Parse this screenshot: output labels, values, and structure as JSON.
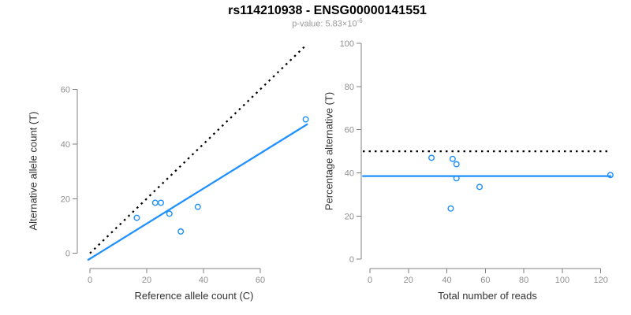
{
  "header": {
    "title": "rs114210938 - ENSG00000141551",
    "subtitle_prefix": "p-value: 5.83×10",
    "subtitle_exponent": "-6"
  },
  "colors": {
    "accent_blue": "#1E90FF",
    "dotted_line": "#000000",
    "axis_line": "#808080",
    "tick_label": "#8f8f8f",
    "axis_label": "#333333",
    "subtitle_gray": "#999999"
  },
  "chart_data": [
    {
      "type": "scatter",
      "panel": "left",
      "xlabel": "Reference allele count (C)",
      "ylabel": "Alternative allele count (T)",
      "xticks": [
        0,
        20,
        40,
        60
      ],
      "yticks": [
        0,
        20,
        40,
        60
      ],
      "xlim": [
        -4.5,
        78
      ],
      "ylim": [
        -5.5,
        76.5
      ],
      "grid": false,
      "point_color": "#1E90FF",
      "points": [
        [
          16.5,
          13
        ],
        [
          23,
          18.5
        ],
        [
          25,
          18.5
        ],
        [
          28,
          14.5
        ],
        [
          38,
          17
        ],
        [
          32,
          8
        ],
        [
          76,
          49
        ]
      ],
      "lines": [
        {
          "name": "identity-line",
          "style": "dotted",
          "color": "#000000",
          "from": [
            0,
            0
          ],
          "to": [
            76.2,
            76.2
          ]
        },
        {
          "name": "regression-line",
          "style": "solid",
          "color": "#1E90FF",
          "from": [
            -0.8,
            -2.5
          ],
          "to": [
            76.7,
            47.3
          ]
        }
      ]
    },
    {
      "type": "scatter",
      "panel": "right",
      "xlabel": "Total number of reads",
      "ylabel": "Percentage alternative (T)",
      "xticks": [
        0,
        20,
        40,
        60,
        80,
        100,
        120
      ],
      "yticks": [
        0,
        20,
        40,
        60,
        80,
        100
      ],
      "xlim": [
        -4.5,
        126
      ],
      "ylim": [
        -4.5,
        104.5
      ],
      "grid": false,
      "point_color": "#1E90FF",
      "points": [
        [
          32,
          47
        ],
        [
          43,
          46.5
        ],
        [
          45,
          44
        ],
        [
          45,
          37.5
        ],
        [
          57,
          33.5
        ],
        [
          42,
          23.5
        ],
        [
          125,
          39
        ]
      ],
      "lines": [
        {
          "name": "fifty-percent-line",
          "style": "dotted",
          "color": "#000000",
          "from": [
            -3.7,
            50
          ],
          "to": [
            123.4,
            50
          ]
        },
        {
          "name": "mean-percentage-line",
          "style": "solid",
          "color": "#1E90FF",
          "from": [
            -4,
            38.5
          ],
          "to": [
            125.5,
            38.5
          ]
        }
      ]
    }
  ]
}
